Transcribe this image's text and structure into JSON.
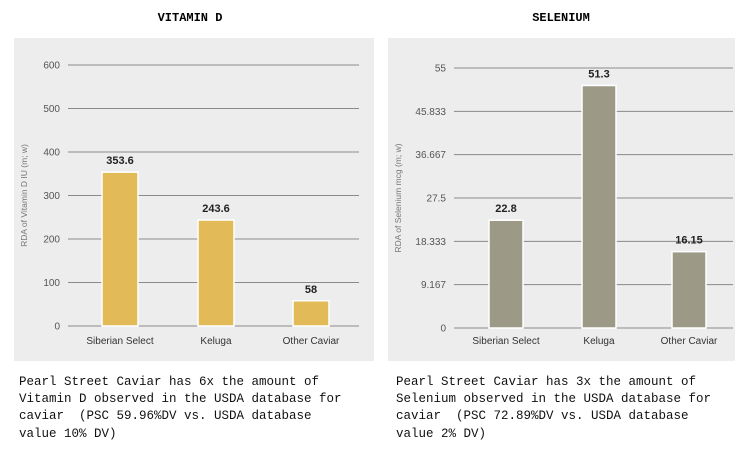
{
  "chart_data": [
    {
      "type": "bar",
      "title": "VITAMIN D",
      "ylabel": "RDA of Vitamin D IU (m; w)",
      "xlabel": "",
      "categories": [
        "Siberian Select",
        "Keluga",
        "Other Caviar"
      ],
      "values": [
        353.6,
        243.6,
        58
      ],
      "data_labels": [
        "353.6",
        "243.6",
        "58"
      ],
      "ylim": [
        0,
        600
      ],
      "yticks": [
        "0",
        "100",
        "200",
        "300",
        "400",
        "500",
        "600"
      ],
      "grid": true,
      "bar_color": "#e2bb58"
    },
    {
      "type": "bar",
      "title": "SELENIUM",
      "ylabel": "RDA of Selenium mcg (m; w)",
      "xlabel": "",
      "categories": [
        "Siberian Select",
        "Keluga",
        "Other Caviar"
      ],
      "values": [
        22.8,
        51.3,
        16.15
      ],
      "data_labels": [
        "22.8",
        "51.3",
        "16.15"
      ],
      "ylim": [
        0,
        55
      ],
      "yticks": [
        "0",
        "9.167",
        "18.333",
        "27.5",
        "36.667",
        "45.833",
        "55"
      ],
      "grid": true,
      "bar_color": "#9c9a86"
    }
  ],
  "captions": {
    "vitamin_d": "Pearl Street Caviar has 6x the amount of\nVitamin D observed in the USDA database for\ncaviar  (PSC 59.96%DV vs. USDA database\nvalue 10% DV)",
    "selenium": "Pearl Street Caviar has 3x the amount of\nSelenium observed in the USDA database for\ncaviar  (PSC 72.89%DV vs. USDA database\nvalue 2% DV)"
  },
  "colors": {
    "panel_bg": "#ededed",
    "grid": "#8a8a8a",
    "tick_text": "#555555",
    "label_text": "#333333"
  }
}
